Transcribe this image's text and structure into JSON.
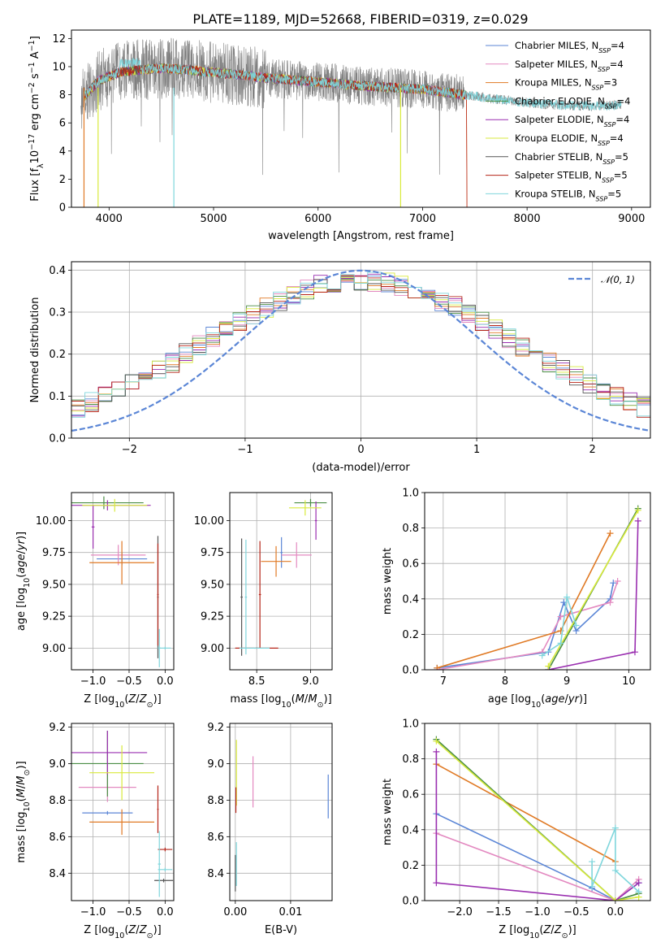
{
  "title": "PLATE=1189, MJD=52668, FIBERID=0319, z=0.029",
  "colors": {
    "blue": "#5b86d6",
    "pink": "#e389c0",
    "orange": "#e07a25",
    "green": "#4a8d44",
    "purple": "#9a2fb0",
    "yellow": "#d9ea3c",
    "gray": "#555555",
    "red": "#b52418",
    "cyan": "#7fd6dc",
    "spectrum": "#808080",
    "grid": "#b0b0b0"
  },
  "legend_entries": [
    {
      "base": "Chabrier MILES, N",
      "sub": "SSP",
      "tail": "=4",
      "color": "blue"
    },
    {
      "base": "Salpeter MILES, N",
      "sub": "SSP",
      "tail": "=4",
      "color": "pink"
    },
    {
      "base": "Kroupa MILES, N",
      "sub": "SSP",
      "tail": "=3",
      "color": "orange"
    },
    {
      "base": "Chabrier ELODIE, N",
      "sub": "SSP",
      "tail": "=4",
      "color": "green"
    },
    {
      "base": "Salpeter ELODIE, N",
      "sub": "SSP",
      "tail": "=4",
      "color": "purple"
    },
    {
      "base": "Kroupa ELODIE, N",
      "sub": "SSP",
      "tail": "=4",
      "color": "yellow"
    },
    {
      "base": "Chabrier STELIB, N",
      "sub": "SSP",
      "tail": "=5",
      "color": "gray"
    },
    {
      "base": "Salpeter STELIB, N",
      "sub": "SSP",
      "tail": "=5",
      "color": "red"
    },
    {
      "base": "Kroupa STELIB, N",
      "sub": "SSP",
      "tail": "=5",
      "color": "cyan"
    }
  ],
  "chart_data": [
    {
      "id": "spectrum",
      "type": "line",
      "xlabel": "wavelength [Angstrom, rest frame]",
      "ylabel": {
        "a": "Flux [f",
        "a_sub": "λ",
        "b": "10",
        "b_sup": "−17",
        "c": " erg cm",
        "c_sup": "−2",
        "d": " s",
        "d_sup": "−1",
        "e": " A",
        "e_sup": "−1",
        "f": "]"
      },
      "xlim": [
        3640,
        9180
      ],
      "ylim": [
        0,
        12.6
      ],
      "xticks": [
        4000,
        5000,
        6000,
        7000,
        8000,
        9000
      ],
      "yticks": [
        0,
        2,
        4,
        6,
        8,
        10,
        12
      ],
      "observed": {
        "x_range": [
          3730,
          8900
        ],
        "profile": [
          [
            3730,
            7.6
          ],
          [
            3900,
            9.0
          ],
          [
            4100,
            9.6
          ],
          [
            4500,
            9.9
          ],
          [
            5000,
            9.6
          ],
          [
            5500,
            9.2
          ],
          [
            6000,
            8.9
          ],
          [
            6500,
            8.6
          ],
          [
            7000,
            8.4
          ],
          [
            7400,
            8.0
          ],
          [
            7800,
            7.6
          ],
          [
            8200,
            7.3
          ],
          [
            8600,
            7.2
          ],
          [
            8900,
            7.3
          ]
        ]
      },
      "models_x_range": [
        3760,
        7420
      ]
    },
    {
      "id": "residuals",
      "type": "histogram",
      "xlabel": "(data-model)/error",
      "ylabel": "Normed distribution",
      "xlim": [
        -2.5,
        2.5
      ],
      "ylim": [
        0,
        0.42
      ],
      "xticks": [
        -2,
        -1,
        0,
        1,
        2
      ],
      "yticks": [
        0.0,
        0.1,
        0.2,
        0.3,
        0.4
      ],
      "gaussian": {
        "mu": 0,
        "sigma": 1,
        "legend": "𝒩(0, 1)"
      }
    },
    {
      "id": "age_vs_Z",
      "type": "errorbar",
      "xlabel": "Z [log10(Z/Z⊙)]",
      "ylabel": "age [log10(age/yr)]",
      "xlim": [
        -1.3,
        0.12
      ],
      "ylim": [
        8.83,
        10.22
      ],
      "xticks": [
        -1.0,
        -0.5,
        0.0
      ],
      "yticks": [
        9.0,
        9.25,
        9.5,
        9.75,
        10.0
      ],
      "points": [
        {
          "c": "blue",
          "x": -0.6,
          "xe": 0.35,
          "y": 9.7,
          "ye": 0.05
        },
        {
          "c": "pink",
          "x": -0.65,
          "xe": 0.38,
          "y": 9.73,
          "ye": 0.08
        },
        {
          "c": "orange",
          "x": -0.6,
          "xe": 0.45,
          "y": 9.67,
          "ye": 0.17
        },
        {
          "c": "green",
          "x": -0.85,
          "xe": 0.55,
          "y": 10.14,
          "ye": 0.05
        },
        {
          "c": "purple",
          "x": -0.8,
          "xe": 0.6,
          "y": 10.12,
          "ye": 0.04
        },
        {
          "c": "purple",
          "x": -1.0,
          "xe": 0.02,
          "y": 9.95,
          "ye": 0.17
        },
        {
          "c": "yellow",
          "x": -0.7,
          "xe": 0.45,
          "y": 10.12,
          "ye": 0.05
        },
        {
          "c": "gray",
          "x": -0.1,
          "xe": 0.01,
          "y": 9.4,
          "ye": 0.48
        },
        {
          "c": "red",
          "x": -0.1,
          "xe": 0.01,
          "y": 9.42,
          "ye": 0.4
        },
        {
          "c": "cyan",
          "x": -0.08,
          "xe": 0.02,
          "y": 9.0,
          "ye": 0.15
        },
        {
          "c": "cyan",
          "x": 0.0,
          "xe": 0.08,
          "y": 9.0,
          "ye": 0.01
        }
      ]
    },
    {
      "id": "age_vs_mass",
      "type": "errorbar",
      "xlabel": "mass [log10(M/M⊙)]",
      "ylabel": "",
      "xlim": [
        8.25,
        9.2
      ],
      "ylim": [
        8.83,
        10.22
      ],
      "xticks": [
        8.5,
        9.0
      ],
      "yticks": [
        9.0,
        9.25,
        9.5,
        9.75,
        10.0
      ],
      "points": [
        {
          "c": "blue",
          "x": 8.73,
          "xe": 0.01,
          "y": 9.75,
          "ye": 0.12
        },
        {
          "c": "pink",
          "x": 8.87,
          "xe": 0.14,
          "y": 9.73,
          "ye": 0.1
        },
        {
          "c": "orange",
          "x": 8.68,
          "xe": 0.14,
          "y": 9.68,
          "ye": 0.12
        },
        {
          "c": "green",
          "x": 9.0,
          "xe": 0.15,
          "y": 10.14,
          "ye": 0.03
        },
        {
          "c": "purple",
          "x": 9.05,
          "xe": 0.01,
          "y": 10.0,
          "ye": 0.15
        },
        {
          "c": "yellow",
          "x": 8.95,
          "xe": 0.15,
          "y": 10.1,
          "ye": 0.06
        },
        {
          "c": "gray",
          "x": 8.36,
          "xe": 0.01,
          "y": 9.4,
          "ye": 0.46
        },
        {
          "c": "red",
          "x": 8.53,
          "xe": 0.01,
          "y": 9.42,
          "ye": 0.42
        },
        {
          "c": "red",
          "x": 8.5,
          "xe": 0.2,
          "y": 9.0,
          "ye": 0.005
        },
        {
          "c": "cyan",
          "x": 8.4,
          "xe": 0.01,
          "y": 9.4,
          "ye": 0.45
        },
        {
          "c": "cyan",
          "x": 8.48,
          "xe": 0.14,
          "y": 9.0,
          "ye": 0.005
        }
      ]
    },
    {
      "id": "weight_vs_age",
      "type": "line",
      "xlabel": "age [log10(age/yr)]",
      "ylabel": "mass weight",
      "xlim": [
        6.7,
        10.35
      ],
      "ylim": [
        0,
        1.0
      ],
      "xticks": [
        7,
        8,
        9,
        10
      ],
      "yticks": [
        0.0,
        0.2,
        0.4,
        0.6,
        0.8,
        1.0
      ],
      "series": [
        {
          "c": "blue",
          "points": [
            [
              6.9,
              0.01
            ],
            [
              8.7,
              0.1
            ],
            [
              8.95,
              0.38
            ],
            [
              9.15,
              0.22
            ],
            [
              9.7,
              0.4
            ],
            [
              9.75,
              0.49
            ]
          ]
        },
        {
          "c": "pink",
          "points": [
            [
              6.9,
              0.0
            ],
            [
              8.6,
              0.1
            ],
            [
              8.9,
              0.3
            ],
            [
              9.7,
              0.38
            ],
            [
              9.82,
              0.5
            ]
          ]
        },
        {
          "c": "orange",
          "points": [
            [
              6.9,
              0.01
            ],
            [
              8.9,
              0.22
            ],
            [
              9.7,
              0.77
            ]
          ]
        },
        {
          "c": "green",
          "points": [
            [
              8.7,
              0.0
            ],
            [
              10.15,
              0.91
            ]
          ]
        },
        {
          "c": "purple",
          "points": [
            [
              8.7,
              0.0
            ],
            [
              10.1,
              0.1
            ],
            [
              10.15,
              0.84
            ]
          ]
        },
        {
          "c": "yellow",
          "points": [
            [
              8.7,
              0.02
            ],
            [
              10.15,
              0.9
            ]
          ]
        },
        {
          "c": "cyan",
          "points": [
            [
              8.6,
              0.08
            ],
            [
              8.9,
              0.15
            ],
            [
              9.0,
              0.41
            ],
            [
              9.15,
              0.25
            ]
          ]
        }
      ]
    },
    {
      "id": "mass_vs_Z",
      "type": "errorbar",
      "xlabel": "Z [log10(Z/Z⊙)]",
      "ylabel": "mass [log10(M/M⊙)]",
      "xlim": [
        -1.3,
        0.12
      ],
      "ylim": [
        8.25,
        9.22
      ],
      "xticks": [
        -1.0,
        -0.5,
        0.0
      ],
      "yticks": [
        8.4,
        8.6,
        8.8,
        9.0,
        9.2
      ],
      "points": [
        {
          "c": "blue",
          "x": -0.8,
          "xe": 0.35,
          "y": 8.73,
          "ye": 0.01
        },
        {
          "c": "pink",
          "x": -0.8,
          "xe": 0.4,
          "y": 8.87,
          "ye": 0.08
        },
        {
          "c": "orange",
          "x": -0.6,
          "xe": 0.45,
          "y": 8.68,
          "ye": 0.07
        },
        {
          "c": "green",
          "x": -0.8,
          "xe": 0.5,
          "y": 9.0,
          "ye": 0.18
        },
        {
          "c": "purple",
          "x": -0.8,
          "xe": 0.55,
          "y": 9.06,
          "ye": 0.12
        },
        {
          "c": "yellow",
          "x": -0.6,
          "xe": 0.45,
          "y": 8.95,
          "ye": 0.15
        },
        {
          "c": "gray",
          "x": -0.02,
          "xe": 0.13,
          "y": 8.36,
          "ye": 0.01
        },
        {
          "c": "red",
          "x": -0.1,
          "xe": 0.01,
          "y": 8.75,
          "ye": 0.13
        },
        {
          "c": "red",
          "x": 0.0,
          "xe": 0.1,
          "y": 8.53,
          "ye": 0.01
        },
        {
          "c": "cyan",
          "x": -0.08,
          "xe": 0.02,
          "y": 8.45,
          "ye": 0.18
        },
        {
          "c": "cyan",
          "x": 0.0,
          "xe": 0.1,
          "y": 8.42,
          "ye": 0.01
        }
      ]
    },
    {
      "id": "mass_vs_ebv",
      "type": "errorbar",
      "xlabel": "E(B-V)",
      "ylabel": "",
      "xlim": [
        -0.001,
        0.0175
      ],
      "ylim": [
        8.25,
        9.22
      ],
      "xticks": [
        0.0,
        0.01
      ],
      "yticks": [
        8.4,
        8.6,
        8.8,
        9.0,
        9.2
      ],
      "points": [
        {
          "c": "blue",
          "x": 0.0168,
          "xe": 0.0,
          "y": 8.82,
          "ye": 0.12
        },
        {
          "c": "pink",
          "x": 0.0032,
          "xe": 0.0,
          "y": 8.9,
          "ye": 0.14
        },
        {
          "c": "yellow",
          "x": 0.0002,
          "xe": 0.0,
          "y": 8.95,
          "ye": 0.18
        },
        {
          "c": "red",
          "x": 0.0001,
          "xe": 0.0,
          "y": 8.8,
          "ye": 0.07
        },
        {
          "c": "gray",
          "x": 0.0,
          "xe": 0.0,
          "y": 8.4,
          "ye": 0.1
        },
        {
          "c": "cyan",
          "x": 0.0002,
          "xe": 0.0,
          "y": 8.45,
          "ye": 0.12
        }
      ]
    },
    {
      "id": "weight_vs_Z",
      "type": "line",
      "xlabel": "Z [log10(Z/Z⊙)]",
      "ylabel": "mass weight",
      "xlim": [
        -2.45,
        0.45
      ],
      "ylim": [
        0,
        1.0
      ],
      "xticks": [
        -2.0,
        -1.5,
        -1.0,
        -0.5,
        0.0
      ],
      "yticks": [
        0.0,
        0.2,
        0.4,
        0.6,
        0.8,
        1.0
      ],
      "series": [
        {
          "c": "blue",
          "points": [
            [
              -2.3,
              0.49
            ],
            [
              -0.3,
              0.07
            ],
            [
              0.0,
              0.0
            ],
            [
              0.3,
              0.1
            ]
          ]
        },
        {
          "c": "pink",
          "points": [
            [
              -2.3,
              0.38
            ],
            [
              0.0,
              0.0
            ],
            [
              0.3,
              0.12
            ]
          ]
        },
        {
          "c": "orange",
          "points": [
            [
              -2.3,
              0.77
            ],
            [
              0.0,
              0.22
            ]
          ]
        },
        {
          "c": "green",
          "points": [
            [
              -2.3,
              0.91
            ],
            [
              0.0,
              0.0
            ],
            [
              0.3,
              0.04
            ]
          ]
        },
        {
          "c": "purple",
          "points": [
            [
              -2.3,
              0.84
            ],
            [
              -2.3,
              0.1
            ],
            [
              0.0,
              0.0
            ],
            [
              0.3,
              0.1
            ]
          ]
        },
        {
          "c": "yellow",
          "points": [
            [
              -2.3,
              0.9
            ],
            [
              0.0,
              0.0
            ],
            [
              0.3,
              0.02
            ]
          ]
        },
        {
          "c": "cyan",
          "points": [
            [
              -0.3,
              0.22
            ],
            [
              -0.3,
              0.08
            ],
            [
              0.0,
              0.41
            ],
            [
              0.0,
              0.17
            ],
            [
              0.3,
              0.05
            ]
          ]
        }
      ]
    }
  ]
}
